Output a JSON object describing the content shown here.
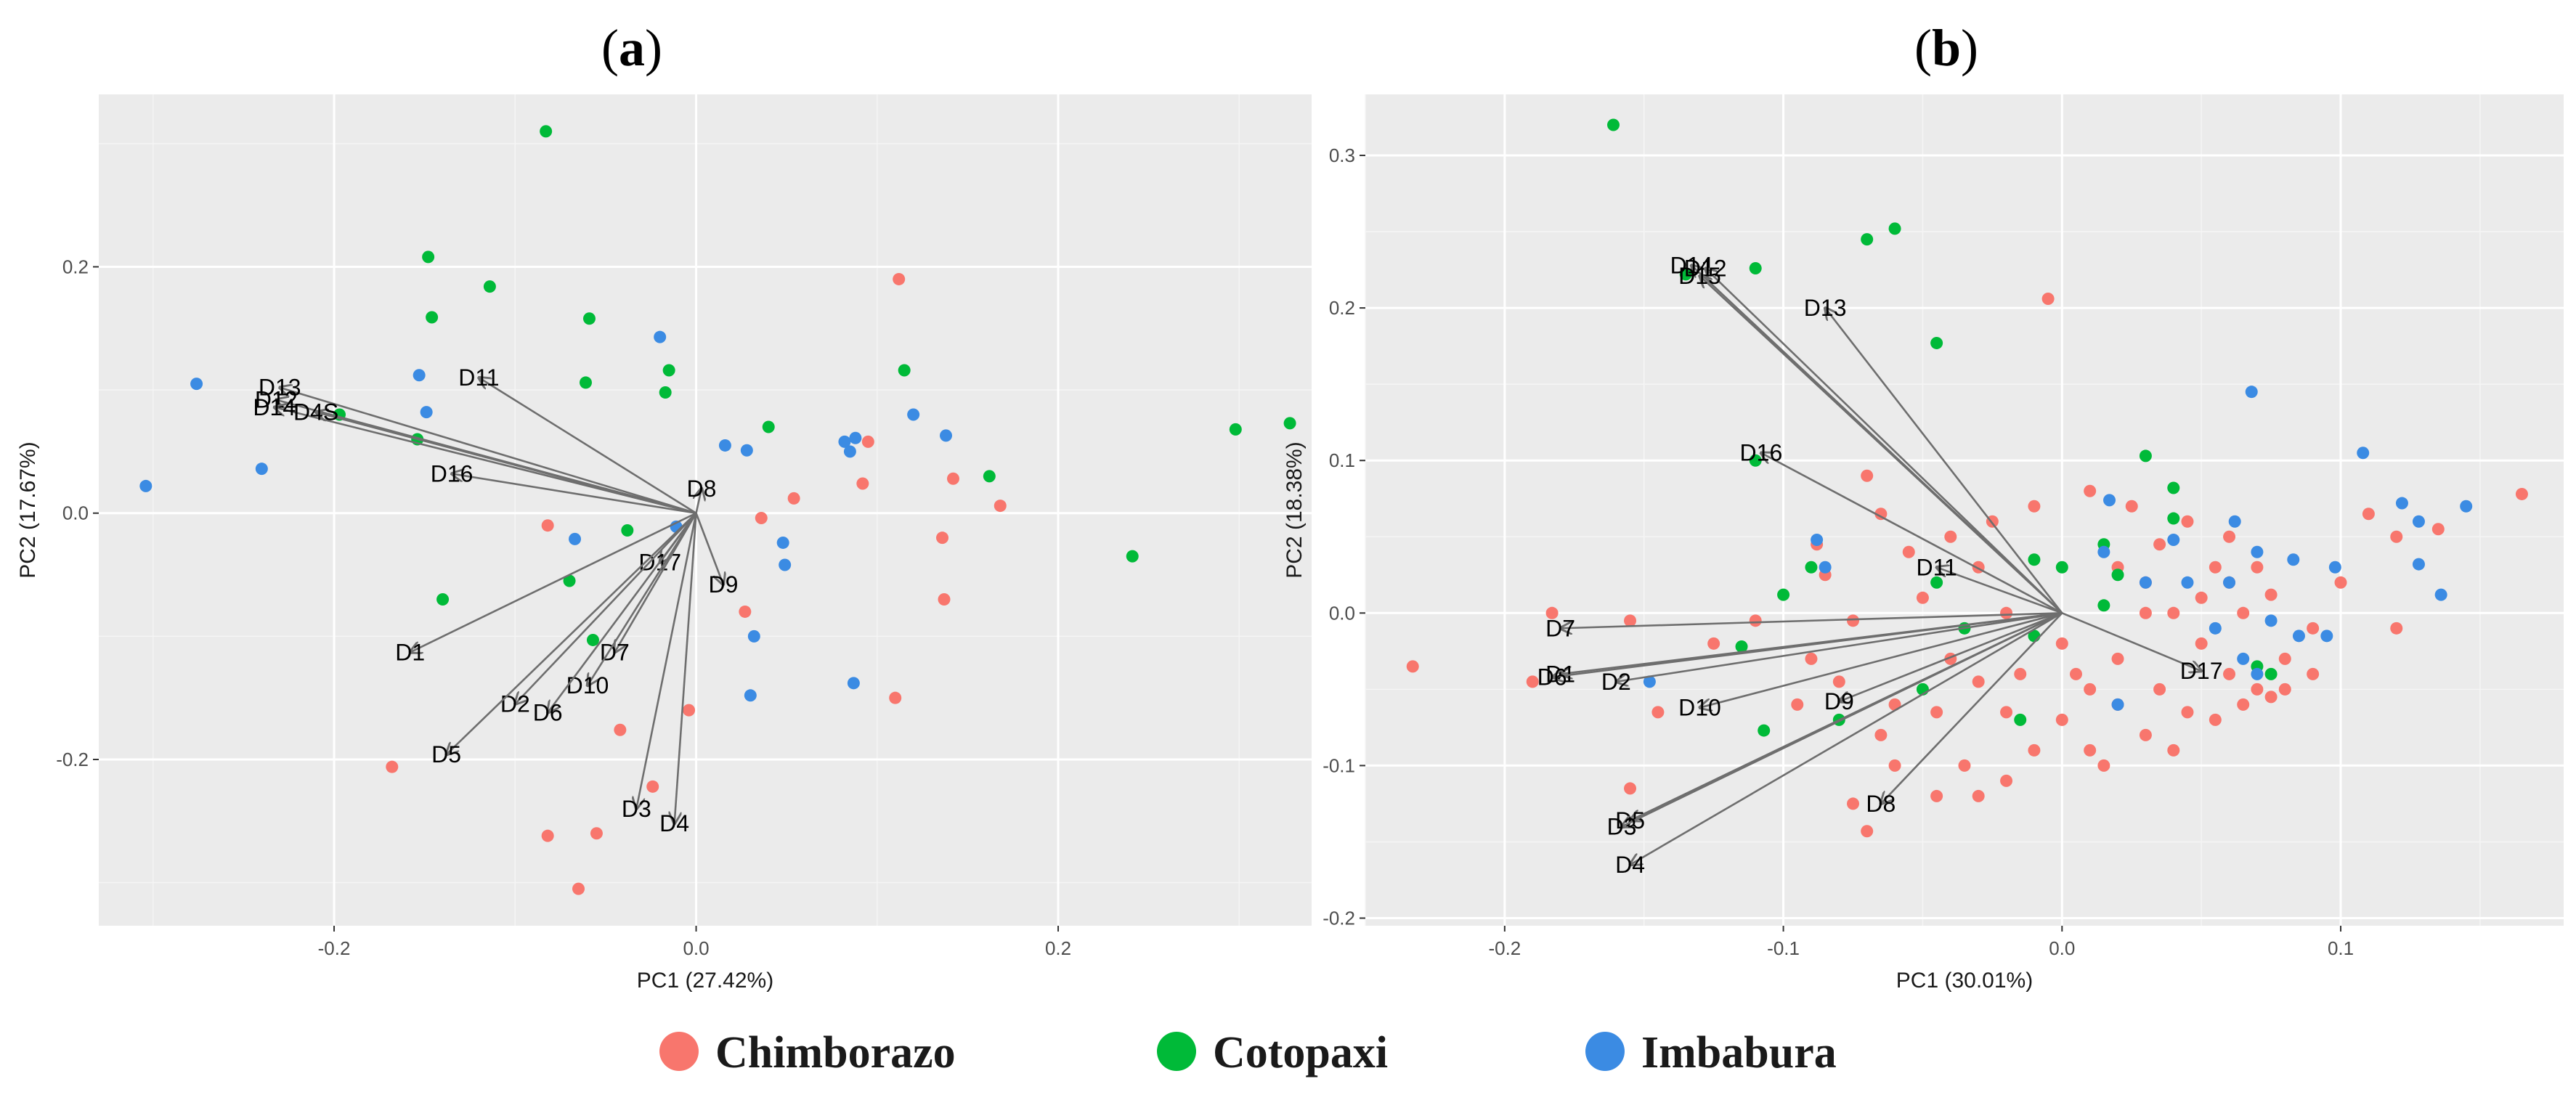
{
  "legend": {
    "entries": [
      {
        "name": "Chimborazo",
        "color": "#F8766D"
      },
      {
        "name": "Cotopaxi",
        "color": "#00BA38"
      },
      {
        "name": "Imbabura",
        "color": "#3B8BE3"
      }
    ]
  },
  "chart_data": [
    {
      "type": "scatter",
      "panel_label_open": "(",
      "panel_label_letter": "a",
      "panel_label_close": ")",
      "xlabel": "PC1 (27.42%)",
      "ylabel": "PC2 (17.67%)",
      "xlim": [
        -0.33,
        0.34
      ],
      "ylim": [
        -0.335,
        0.34
      ],
      "xticks": [
        -0.2,
        0.0,
        0.2
      ],
      "xtick_labels": [
        "-0.2",
        "0.0",
        "0.2"
      ],
      "yticks": [
        -0.2,
        0.0,
        0.2
      ],
      "ytick_labels": [
        "-0.2",
        "0.0",
        "0.2"
      ],
      "grid": true,
      "series": [
        {
          "color": "#F8766D",
          "points": [
            [
              0.112,
              0.19
            ],
            [
              0.095,
              0.058
            ],
            [
              0.054,
              0.012
            ],
            [
              0.036,
              -0.004
            ],
            [
              0.092,
              0.024
            ],
            [
              0.142,
              0.028
            ],
            [
              0.168,
              0.006
            ],
            [
              0.136,
              -0.02
            ],
            [
              0.137,
              -0.07
            ],
            [
              0.11,
              -0.15
            ],
            [
              0.027,
              -0.08
            ],
            [
              -0.082,
              -0.01
            ],
            [
              -0.168,
              -0.206
            ],
            [
              -0.042,
              -0.176
            ],
            [
              -0.004,
              -0.16
            ],
            [
              -0.024,
              -0.222
            ],
            [
              -0.055,
              -0.26
            ],
            [
              -0.082,
              -0.262
            ],
            [
              -0.065,
              -0.305
            ]
          ]
        },
        {
          "color": "#00BA38",
          "points": [
            [
              -0.083,
              0.31
            ],
            [
              -0.148,
              0.208
            ],
            [
              -0.146,
              0.159
            ],
            [
              -0.114,
              0.184
            ],
            [
              -0.059,
              0.158
            ],
            [
              -0.015,
              0.116
            ],
            [
              -0.061,
              0.106
            ],
            [
              -0.017,
              0.098
            ],
            [
              -0.197,
              0.08
            ],
            [
              -0.154,
              0.06
            ],
            [
              0.04,
              0.07
            ],
            [
              0.115,
              0.116
            ],
            [
              0.162,
              0.03
            ],
            [
              0.298,
              0.068
            ],
            [
              0.328,
              0.073
            ],
            [
              0.241,
              -0.035
            ],
            [
              -0.038,
              -0.014
            ],
            [
              -0.07,
              -0.055
            ],
            [
              -0.14,
              -0.07
            ],
            [
              -0.057,
              -0.103
            ]
          ]
        },
        {
          "color": "#3B8BE3",
          "points": [
            [
              -0.304,
              0.022
            ],
            [
              -0.276,
              0.105
            ],
            [
              -0.24,
              0.036
            ],
            [
              -0.153,
              0.112
            ],
            [
              -0.149,
              0.082
            ],
            [
              -0.02,
              0.143
            ],
            [
              0.016,
              0.055
            ],
            [
              0.028,
              0.051
            ],
            [
              0.082,
              0.058
            ],
            [
              0.088,
              0.061
            ],
            [
              0.085,
              0.05
            ],
            [
              0.12,
              0.08
            ],
            [
              0.138,
              0.063
            ],
            [
              0.048,
              -0.024
            ],
            [
              0.049,
              -0.042
            ],
            [
              -0.067,
              -0.021
            ],
            [
              0.032,
              -0.1
            ],
            [
              -0.011,
              -0.011
            ],
            [
              0.03,
              -0.148
            ],
            [
              0.087,
              -0.138
            ]
          ]
        }
      ],
      "vectors": [
        {
          "label": "D13",
          "x": -0.23,
          "y": 0.102
        },
        {
          "label": "D12",
          "x": -0.232,
          "y": 0.092
        },
        {
          "label": "D14",
          "x": -0.233,
          "y": 0.086
        },
        {
          "label": "D4S",
          "x": -0.21,
          "y": 0.082
        },
        {
          "label": "D11",
          "x": -0.12,
          "y": 0.11
        },
        {
          "label": "D16",
          "x": -0.135,
          "y": 0.032
        },
        {
          "label": "D8",
          "x": 0.003,
          "y": 0.02
        },
        {
          "label": "D17",
          "x": -0.02,
          "y": -0.04
        },
        {
          "label": "D9",
          "x": 0.015,
          "y": -0.058
        },
        {
          "label": "D1",
          "x": -0.158,
          "y": -0.113
        },
        {
          "label": "D7",
          "x": -0.045,
          "y": -0.113
        },
        {
          "label": "D10",
          "x": -0.06,
          "y": -0.14
        },
        {
          "label": "D2",
          "x": -0.1,
          "y": -0.155
        },
        {
          "label": "D6",
          "x": -0.082,
          "y": -0.162
        },
        {
          "label": "D5",
          "x": -0.138,
          "y": -0.196
        },
        {
          "label": "D3",
          "x": -0.033,
          "y": -0.24
        },
        {
          "label": "D4",
          "x": -0.012,
          "y": -0.252
        }
      ]
    },
    {
      "type": "scatter",
      "panel_label_open": "(",
      "panel_label_letter": "b",
      "panel_label_close": ")",
      "xlabel": "PC1 (30.01%)",
      "ylabel": "PC2 (18.38%)",
      "xlim": [
        -0.25,
        0.18
      ],
      "ylim": [
        -0.205,
        0.34
      ],
      "xticks": [
        -0.2,
        -0.1,
        0.0,
        0.1
      ],
      "xtick_labels": [
        "-0.2",
        "-0.1",
        "0.0",
        "0.1"
      ],
      "yticks": [
        -0.2,
        -0.1,
        0.0,
        0.1,
        0.2,
        0.3
      ],
      "ytick_labels": [
        "-0.2",
        "-0.1",
        "0.0",
        "0.1",
        "0.2",
        "0.3"
      ],
      "grid": true,
      "series": [
        {
          "color": "#F8766D",
          "points": [
            [
              -0.233,
              -0.035
            ],
            [
              -0.183,
              0.0
            ],
            [
              -0.155,
              -0.115
            ],
            [
              -0.145,
              -0.065
            ],
            [
              -0.19,
              -0.045
            ],
            [
              -0.005,
              0.206
            ],
            [
              -0.07,
              0.09
            ],
            [
              -0.065,
              0.065
            ],
            [
              -0.088,
              0.045
            ],
            [
              -0.085,
              0.025
            ],
            [
              -0.075,
              -0.005
            ],
            [
              -0.095,
              -0.06
            ],
            [
              -0.08,
              -0.045
            ],
            [
              -0.065,
              -0.08
            ],
            [
              -0.07,
              -0.143
            ],
            [
              -0.075,
              -0.125
            ],
            [
              -0.06,
              -0.1
            ],
            [
              -0.045,
              -0.065
            ],
            [
              -0.035,
              -0.1
            ],
            [
              -0.02,
              -0.11
            ],
            [
              -0.01,
              -0.09
            ],
            [
              0.0,
              -0.07
            ],
            [
              0.01,
              -0.05
            ],
            [
              0.02,
              -0.06
            ],
            [
              0.03,
              -0.08
            ],
            [
              0.015,
              -0.1
            ],
            [
              0.0,
              -0.02
            ],
            [
              -0.02,
              0.0
            ],
            [
              -0.03,
              0.03
            ],
            [
              0.02,
              0.03
            ],
            [
              0.03,
              0.02
            ],
            [
              0.04,
              0.0
            ],
            [
              0.05,
              -0.02
            ],
            [
              0.06,
              -0.04
            ],
            [
              0.07,
              -0.05
            ],
            [
              0.08,
              -0.03
            ],
            [
              0.09,
              -0.01
            ],
            [
              0.1,
              0.02
            ],
            [
              0.12,
              -0.01
            ],
            [
              0.12,
              0.05
            ],
            [
              0.135,
              0.055
            ],
            [
              0.165,
              0.078
            ],
            [
              0.11,
              0.065
            ],
            [
              0.075,
              0.012
            ],
            [
              0.065,
              0.0
            ],
            [
              0.055,
              0.03
            ],
            [
              0.045,
              0.06
            ],
            [
              0.035,
              0.045
            ],
            [
              0.025,
              0.07
            ],
            [
              0.01,
              0.08
            ],
            [
              -0.01,
              0.07
            ],
            [
              -0.025,
              0.06
            ],
            [
              -0.04,
              0.05
            ],
            [
              -0.055,
              0.04
            ],
            [
              -0.05,
              0.01
            ],
            [
              -0.04,
              -0.03
            ],
            [
              -0.03,
              -0.045
            ],
            [
              -0.02,
              -0.065
            ],
            [
              0.005,
              -0.04
            ],
            [
              0.02,
              -0.03
            ],
            [
              0.035,
              -0.05
            ],
            [
              0.04,
              -0.09
            ],
            [
              0.01,
              -0.09
            ],
            [
              -0.015,
              -0.04
            ],
            [
              0.03,
              0.0
            ],
            [
              0.05,
              0.01
            ],
            [
              0.06,
              0.05
            ],
            [
              -0.03,
              -0.12
            ],
            [
              -0.045,
              -0.12
            ],
            [
              -0.06,
              -0.06
            ],
            [
              -0.09,
              -0.03
            ],
            [
              -0.11,
              -0.005
            ],
            [
              -0.125,
              -0.02
            ],
            [
              -0.155,
              -0.005
            ],
            [
              0.09,
              -0.04
            ],
            [
              0.075,
              -0.055
            ],
            [
              0.065,
              -0.06
            ],
            [
              0.045,
              -0.065
            ],
            [
              0.055,
              -0.07
            ],
            [
              0.08,
              -0.05
            ],
            [
              0.06,
              0.02
            ],
            [
              0.07,
              0.03
            ]
          ]
        },
        {
          "color": "#00BA38",
          "points": [
            [
              -0.161,
              0.32
            ],
            [
              -0.06,
              0.252
            ],
            [
              -0.07,
              0.245
            ],
            [
              -0.11,
              0.226
            ],
            [
              -0.135,
              0.222
            ],
            [
              -0.045,
              0.177
            ],
            [
              -0.11,
              0.1
            ],
            [
              0.03,
              0.103
            ],
            [
              0.04,
              0.082
            ],
            [
              0.04,
              0.062
            ],
            [
              0.015,
              0.045
            ],
            [
              0.0,
              0.03
            ],
            [
              -0.01,
              0.035
            ],
            [
              -0.045,
              0.02
            ],
            [
              -0.09,
              0.03
            ],
            [
              -0.1,
              0.012
            ],
            [
              -0.035,
              -0.01
            ],
            [
              -0.015,
              -0.07
            ],
            [
              -0.08,
              -0.07
            ],
            [
              -0.107,
              -0.077
            ],
            [
              -0.115,
              -0.022
            ],
            [
              -0.05,
              -0.05
            ],
            [
              0.015,
              0.005
            ],
            [
              0.02,
              0.025
            ],
            [
              0.07,
              -0.035
            ],
            [
              0.075,
              -0.04
            ],
            [
              -0.01,
              -0.015
            ]
          ]
        },
        {
          "color": "#3B8BE3",
          "points": [
            [
              0.068,
              0.145
            ],
            [
              0.108,
              0.105
            ],
            [
              0.122,
              0.072
            ],
            [
              0.145,
              0.07
            ],
            [
              0.128,
              0.06
            ],
            [
              0.098,
              0.03
            ],
            [
              0.083,
              0.035
            ],
            [
              0.07,
              0.04
            ],
            [
              0.062,
              0.06
            ],
            [
              0.04,
              0.048
            ],
            [
              0.017,
              0.074
            ],
            [
              0.015,
              0.04
            ],
            [
              -0.088,
              0.048
            ],
            [
              -0.085,
              0.03
            ],
            [
              0.03,
              0.02
            ],
            [
              0.06,
              0.02
            ],
            [
              0.075,
              -0.005
            ],
            [
              0.085,
              -0.015
            ],
            [
              0.095,
              -0.015
            ],
            [
              0.065,
              -0.03
            ],
            [
              0.07,
              -0.04
            ],
            [
              0.02,
              -0.06
            ],
            [
              0.128,
              0.032
            ],
            [
              0.136,
              0.012
            ],
            [
              0.055,
              -0.01
            ],
            [
              0.045,
              0.02
            ],
            [
              -0.148,
              -0.045
            ]
          ]
        }
      ],
      "vectors": [
        {
          "label": "D14",
          "x": -0.133,
          "y": 0.228
        },
        {
          "label": "D12",
          "x": -0.128,
          "y": 0.226
        },
        {
          "label": "D15",
          "x": -0.13,
          "y": 0.221
        },
        {
          "label": "D13",
          "x": -0.085,
          "y": 0.2
        },
        {
          "label": "D16",
          "x": -0.108,
          "y": 0.105
        },
        {
          "label": "D11",
          "x": -0.045,
          "y": 0.03
        },
        {
          "label": "D7",
          "x": -0.18,
          "y": -0.01
        },
        {
          "label": "D1",
          "x": -0.18,
          "y": -0.04
        },
        {
          "label": "D6",
          "x": -0.183,
          "y": -0.042
        },
        {
          "label": "D2",
          "x": -0.16,
          "y": -0.045
        },
        {
          "label": "D10",
          "x": -0.13,
          "y": -0.062
        },
        {
          "label": "D9",
          "x": -0.08,
          "y": -0.058
        },
        {
          "label": "D17",
          "x": 0.05,
          "y": -0.038
        },
        {
          "label": "D8",
          "x": -0.065,
          "y": -0.125
        },
        {
          "label": "D5",
          "x": -0.155,
          "y": -0.136
        },
        {
          "label": "D3",
          "x": -0.158,
          "y": -0.14
        },
        {
          "label": "D4",
          "x": -0.155,
          "y": -0.165
        }
      ]
    }
  ]
}
